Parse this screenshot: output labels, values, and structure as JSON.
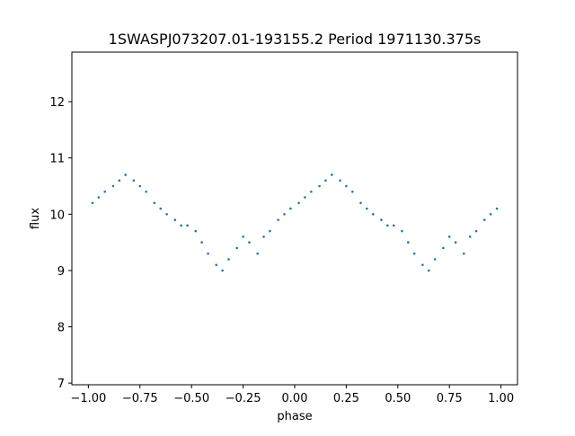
{
  "chart_data": {
    "type": "scatter",
    "title": "1SWASPJ073207.01-193155.2 Period 1971130.375s",
    "xlabel": "phase",
    "ylabel": "flux",
    "xlim": [
      -1.08,
      1.08
    ],
    "ylim": [
      6.97,
      12.88
    ],
    "x_ticks": [
      -1.0,
      -0.75,
      -0.5,
      -0.25,
      0.0,
      0.25,
      0.5,
      0.75,
      1.0
    ],
    "x_tick_labels": [
      "−1.00",
      "−0.75",
      "−0.50",
      "−0.25",
      "0.00",
      "0.25",
      "0.50",
      "0.75",
      "1.00"
    ],
    "y_ticks": [
      7,
      8,
      9,
      10,
      11,
      12
    ],
    "y_tick_labels": [
      "7",
      "8",
      "9",
      "10",
      "11",
      "12"
    ],
    "grid": false,
    "legend": "none",
    "marker_color": "#1f77b4",
    "series": [
      {
        "x": [
          -0.98,
          -0.95,
          -0.92,
          -0.88,
          -0.85,
          -0.82,
          -0.78,
          -0.75,
          -0.72,
          -0.68,
          -0.65,
          -0.62,
          -0.58,
          -0.55,
          -0.52,
          -0.48,
          -0.45,
          -0.42,
          -0.38,
          -0.35,
          -0.32,
          -0.28,
          -0.25,
          -0.22,
          -0.18,
          -0.15,
          -0.12,
          -0.08,
          -0.05,
          -0.02,
          0.02,
          0.05,
          0.08,
          0.12,
          0.15,
          0.18,
          0.22,
          0.25,
          0.28,
          0.32,
          0.35,
          0.38,
          0.42,
          0.45,
          0.48,
          0.52,
          0.55,
          0.58,
          0.62,
          0.65,
          0.68,
          0.72,
          0.75,
          0.78,
          0.82,
          0.85,
          0.88,
          0.92,
          0.95,
          0.98
        ],
        "y": [
          10.2,
          10.3,
          10.4,
          10.5,
          10.6,
          10.7,
          10.6,
          10.5,
          10.4,
          10.2,
          10.1,
          10.0,
          9.9,
          9.8,
          9.8,
          9.7,
          9.5,
          9.3,
          9.1,
          9.0,
          9.2,
          9.4,
          9.6,
          9.5,
          9.3,
          9.6,
          9.7,
          9.9,
          10.0,
          10.1,
          10.2,
          10.3,
          10.4,
          10.5,
          10.6,
          10.7,
          10.6,
          10.5,
          10.4,
          10.2,
          10.1,
          10.0,
          9.9,
          9.8,
          9.8,
          9.7,
          9.5,
          9.3,
          9.1,
          9.0,
          9.2,
          9.4,
          9.6,
          9.5,
          9.3,
          9.6,
          9.7,
          9.9,
          10.0,
          10.1
        ]
      }
    ]
  }
}
